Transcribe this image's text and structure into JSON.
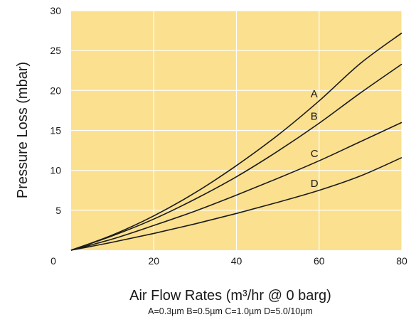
{
  "chart_data": {
    "type": "line",
    "title": "",
    "xlabel": "Air Flow Rates (m³/hr @ 0 barg)",
    "ylabel": "Pressure Loss (mbar)",
    "footnote": "A=0.3µm B=0.5µm C=1.0µm D=5.0/10µm",
    "xlim": [
      0,
      80
    ],
    "ylim": [
      0,
      30
    ],
    "xticks": [
      0,
      20,
      40,
      60,
      80
    ],
    "yticks": [
      0,
      5,
      10,
      15,
      20,
      25,
      30
    ],
    "grid": true,
    "colors": {
      "plot_background": "#fae08f",
      "grid": "#ffffff",
      "line": "#1a1a1a"
    },
    "x": [
      0,
      10,
      20,
      30,
      40,
      50,
      60,
      70,
      80
    ],
    "series": [
      {
        "name": "A",
        "values": [
          0,
          1.9,
          4.3,
          7.2,
          10.6,
          14.4,
          18.7,
          23.4,
          27.2
        ]
      },
      {
        "name": "B",
        "values": [
          0,
          1.8,
          3.9,
          6.4,
          9.2,
          12.4,
          15.9,
          19.7,
          23.3
        ]
      },
      {
        "name": "C",
        "values": [
          0,
          1.4,
          3.1,
          4.9,
          6.9,
          9.0,
          11.2,
          13.6,
          16.0
        ]
      },
      {
        "name": "D",
        "values": [
          0,
          1.0,
          2.1,
          3.3,
          4.6,
          6.0,
          7.5,
          9.3,
          11.6
        ]
      }
    ]
  }
}
